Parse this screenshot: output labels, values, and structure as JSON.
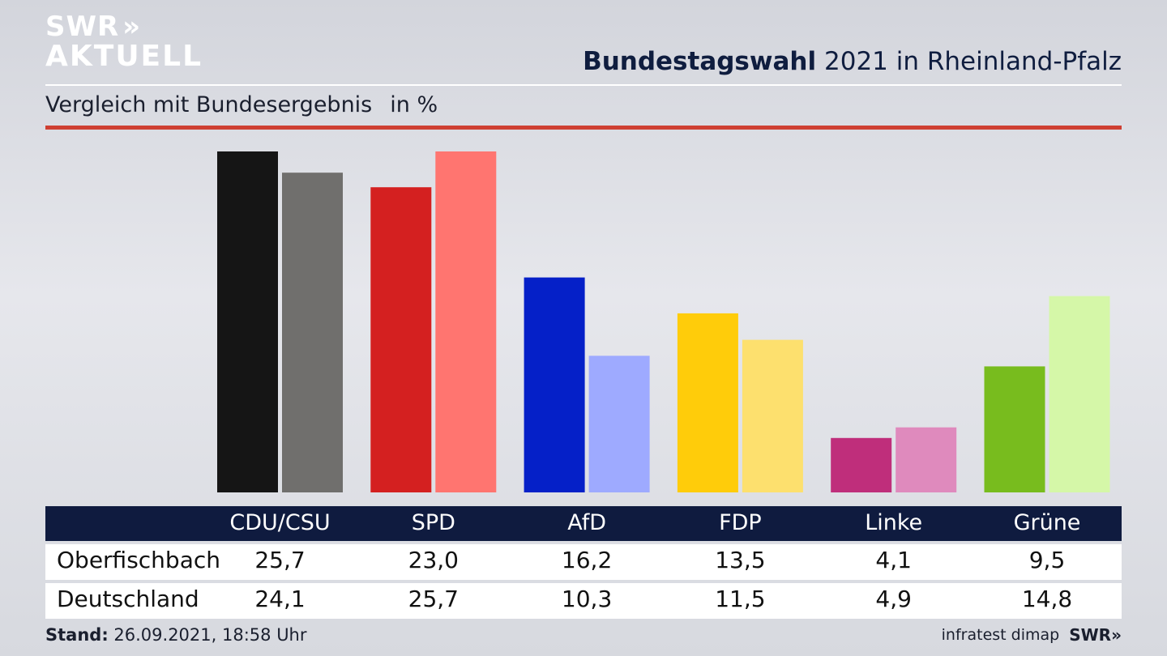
{
  "logo": {
    "line1": "SWR",
    "chevrons": "»",
    "line2": "AKTUELL"
  },
  "header": {
    "title_bold": "Bundestagswahl",
    "title_rest": "2021 in Rheinland-Pfalz",
    "subtitle": "Vergleich mit Bundesergebnis",
    "unit": "in %"
  },
  "footer": {
    "stand_label": "Stand:",
    "stand_value": "26.09.2021, 18:58 Uhr",
    "source": "infratest dimap",
    "brand": "SWR",
    "brand_chevrons": "»"
  },
  "chart_data": {
    "type": "bar",
    "title": "Bundestagswahl 2021 in Rheinland-Pfalz",
    "subtitle": "Vergleich mit Bundesergebnis",
    "ylabel": "in %",
    "categories": [
      "CDU/CSU",
      "SPD",
      "AfD",
      "FDP",
      "Linke",
      "Grüne"
    ],
    "series": [
      {
        "name": "Oberfischbach",
        "values": [
          25.7,
          23.0,
          16.2,
          13.5,
          4.1,
          9.5
        ],
        "display": [
          "25,7",
          "23,0",
          "16,2",
          "13,5",
          "4,1",
          "9,5"
        ]
      },
      {
        "name": "Deutschland",
        "values": [
          24.1,
          25.7,
          10.3,
          11.5,
          4.9,
          14.8
        ],
        "display": [
          "24,1",
          "25,7",
          "10,3",
          "11,5",
          "4,9",
          "14,8"
        ]
      }
    ],
    "colors": {
      "Oberfischbach": [
        "#151515",
        "#d42020",
        "#0520c8",
        "#ffcc0a",
        "#bf2e7b",
        "#78bc1e"
      ],
      "Deutschland": [
        "#706f6d",
        "#ff7570",
        "#9eaaff",
        "#fde06e",
        "#df8abd",
        "#d5f7a8"
      ]
    },
    "ylim": [
      0,
      25.7
    ],
    "grid": false,
    "legend": "table-below"
  }
}
